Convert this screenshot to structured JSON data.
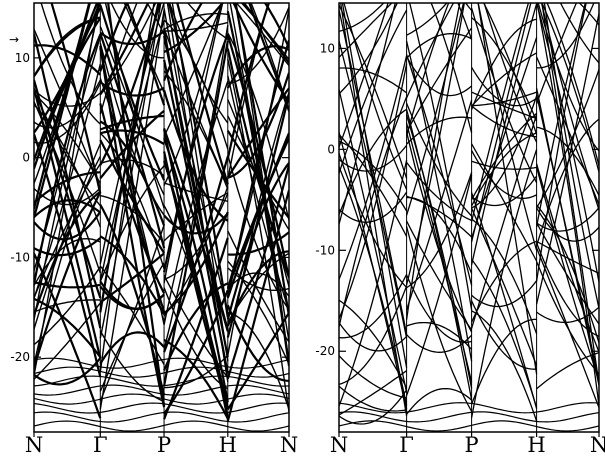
{
  "chart_data": [
    {
      "type": "line",
      "title": "",
      "xlabel": "",
      "ylabel": "",
      "x_ticks": [
        "N",
        "Γ",
        "P",
        "H",
        "N"
      ],
      "y_ticks": [
        "10",
        "0",
        "-10",
        "-20"
      ],
      "ylim": [
        -27.5,
        15.5
      ],
      "grid": false,
      "legend": "none",
      "line_color": "#000000",
      "top_arrow_label": "→"
    },
    {
      "type": "line",
      "title": "",
      "xlabel": "",
      "ylabel": "",
      "x_ticks": [
        "N",
        "Γ",
        "P",
        "H",
        "N"
      ],
      "y_ticks": [
        "10",
        "0",
        "-10",
        "-20"
      ],
      "ylim": [
        -28.0,
        14.5
      ],
      "grid": false,
      "legend": "none",
      "line_color": "#000000"
    }
  ]
}
